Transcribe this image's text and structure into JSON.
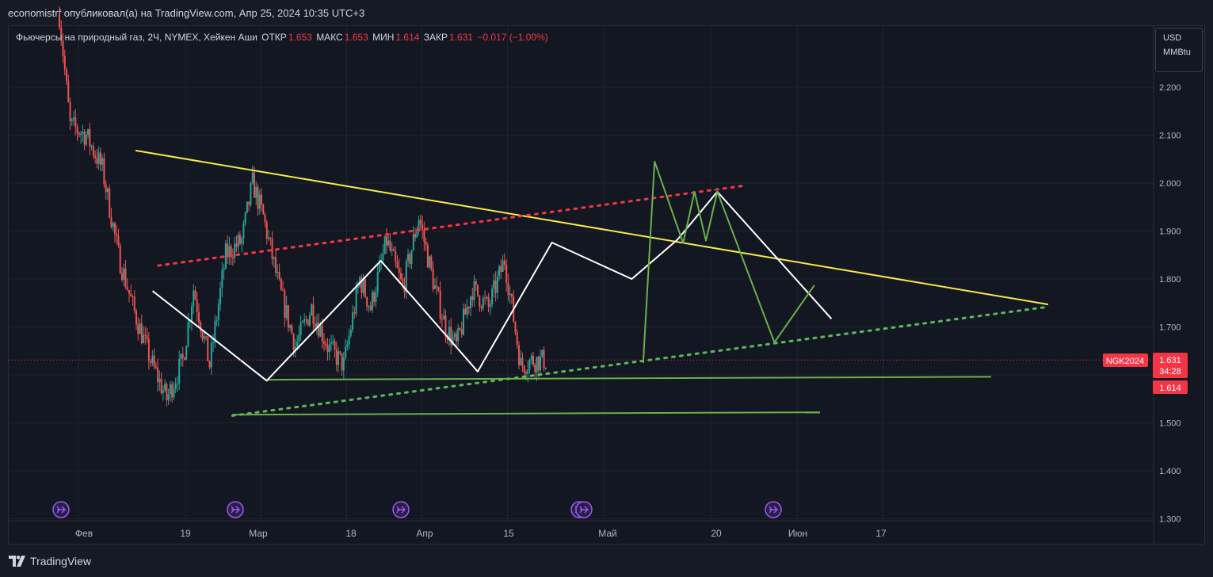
{
  "header": {
    "published_text": "economistrf опубликовал(а) на TradingView.com, Апр 25, 2024 10:35 UTC+3"
  },
  "symbol": {
    "name": "Фьючерсы на природный газ, 2Ч, NYMEX, Хейкен Аши",
    "open_label": "ОТКР",
    "open_value": "1.653",
    "high_label": "МАКС",
    "high_value": "1.653",
    "low_label": "МИН",
    "low_value": "1.614",
    "close_label": "ЗАКР",
    "close_value": "1.631",
    "change": "−0.017 (−1.00%)"
  },
  "units": {
    "currency": "USD",
    "unit": "MMBtu"
  },
  "footer": {
    "brand": "TradingView"
  },
  "colors": {
    "background": "#131722",
    "up": "#26A69A",
    "down": "#EF5350",
    "yellow_trend": "#F5E94C",
    "red_dotted": "#F23645",
    "green_line": "#6AB04C",
    "green_dotted": "#5CB85C",
    "white_zigzag": "#FFFFFF",
    "event_icon": "#9B59F6"
  },
  "chart_data": {
    "type": "candlestick",
    "style": "heikin-ashi",
    "y_axis": {
      "ticks": [
        "2.200",
        "2.100",
        "2.000",
        "1.900",
        "1.800",
        "1.700",
        "1.500",
        "1.400",
        "1.300"
      ],
      "tick_values": [
        2.2,
        2.1,
        2.0,
        1.9,
        1.8,
        1.7,
        1.5,
        1.4,
        1.3
      ],
      "range": [
        1.29,
        2.31
      ]
    },
    "x_axis": {
      "ticks": [
        "Фев",
        "19",
        "Мар",
        "18",
        "Апр",
        "15",
        "Май",
        "20",
        "Июн",
        "17"
      ]
    },
    "last_price": {
      "symbol_tag": "NGK2024",
      "price": "1.631",
      "price_value": 1.631,
      "countdown": "34:28",
      "low_tag": "1.614",
      "low_value": 1.614
    },
    "candle_path_anchors": {
      "x_day_index": [
        0,
        2,
        5,
        8,
        11,
        14,
        17,
        20,
        23,
        25,
        28,
        31,
        34,
        36,
        38,
        41,
        44,
        47,
        50,
        53,
        56,
        58,
        61,
        64,
        67,
        70,
        72,
        74,
        77,
        80,
        83,
        86,
        88,
        91
      ],
      "close": [
        2.35,
        2.12,
        2.1,
        2.03,
        1.85,
        1.73,
        1.63,
        1.55,
        1.63,
        1.78,
        1.62,
        1.85,
        1.88,
        2.0,
        1.93,
        1.78,
        1.66,
        1.74,
        1.66,
        1.62,
        1.8,
        1.74,
        1.88,
        1.78,
        1.93,
        1.78,
        1.7,
        1.66,
        1.78,
        1.74,
        1.84,
        1.62,
        1.63,
        1.63
      ]
    },
    "drawings": [
      {
        "name": "yellow-trendline",
        "color": "#F5E94C",
        "style": "solid",
        "points": [
          [
            10,
            2.068
          ],
          [
            170,
            1.747
          ]
        ]
      },
      {
        "name": "red-dotted-resistance",
        "color": "#F23645",
        "style": "dotted",
        "points": [
          [
            14,
            1.828
          ],
          [
            117,
            1.995
          ]
        ]
      },
      {
        "name": "green-dotted-support",
        "color": "#5CB85C",
        "style": "dotted",
        "points": [
          [
            27,
            1.515
          ],
          [
            170,
            1.742
          ]
        ]
      },
      {
        "name": "green-horizontal-upper",
        "color": "#6AB04C",
        "style": "solid",
        "points": [
          [
            33,
            1.59
          ],
          [
            160,
            1.596
          ]
        ]
      },
      {
        "name": "green-horizontal-lower",
        "color": "#6AB04C",
        "style": "solid",
        "points": [
          [
            27,
            1.517
          ],
          [
            130,
            1.522
          ]
        ]
      },
      {
        "name": "white-zigzag",
        "color": "#FFFFFF",
        "style": "solid",
        "points": [
          [
            13,
            1.775
          ],
          [
            33,
            1.588
          ],
          [
            53,
            1.838
          ],
          [
            70,
            1.607
          ],
          [
            83,
            1.876
          ],
          [
            97,
            1.8
          ],
          [
            105,
            1.882
          ],
          [
            112,
            1.982
          ],
          [
            132,
            1.717
          ]
        ]
      },
      {
        "name": "green-projection",
        "color": "#6AB04C",
        "style": "solid",
        "points": [
          [
            99,
            1.625
          ],
          [
            101,
            2.045
          ],
          [
            106,
            1.875
          ],
          [
            108,
            1.982
          ],
          [
            110,
            1.88
          ],
          [
            112,
            1.982
          ],
          [
            122,
            1.668
          ],
          [
            129,
            1.787
          ]
        ]
      }
    ],
    "event_markers_day": [
      5,
      35,
      67,
      98,
      99,
      131
    ]
  }
}
